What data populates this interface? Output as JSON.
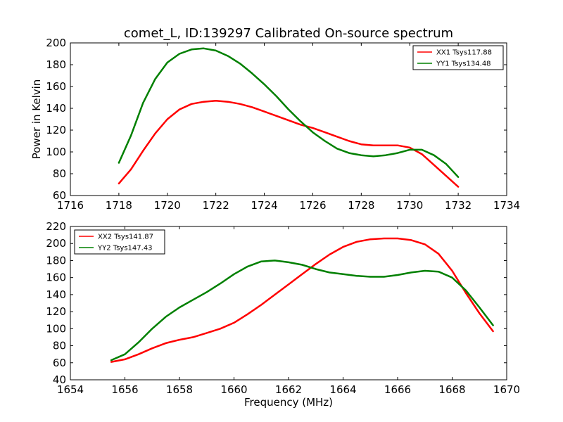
{
  "chart_data": [
    {
      "type": "line",
      "title": "comet_L, ID:139297 Calibrated On-source spectrum",
      "xlabel": "",
      "ylabel": "Power in Kelvin",
      "xlim": [
        1716,
        1734
      ],
      "ylim": [
        60,
        200
      ],
      "xticks": [
        1716,
        1718,
        1720,
        1722,
        1724,
        1726,
        1728,
        1730,
        1732,
        1734
      ],
      "yticks": [
        60,
        80,
        100,
        120,
        140,
        160,
        180,
        200
      ],
      "legend_position": "top-right",
      "grid": false,
      "series": [
        {
          "name": "XX1 Tsys117.88",
          "color": "#ff0000",
          "x": [
            1718,
            1718.5,
            1719,
            1719.5,
            1720,
            1720.5,
            1721,
            1721.5,
            1722,
            1722.5,
            1723,
            1723.5,
            1724,
            1724.5,
            1725,
            1725.5,
            1726,
            1726.5,
            1727,
            1727.5,
            1728,
            1728.5,
            1729,
            1729.5,
            1730,
            1730.5,
            1731,
            1731.5,
            1732
          ],
          "y": [
            71,
            84,
            101,
            117,
            130,
            139,
            144,
            146,
            147,
            146,
            144,
            141,
            137,
            133,
            129,
            125,
            122,
            118,
            114,
            110,
            107,
            106,
            106,
            106,
            104,
            98,
            88,
            78,
            68
          ]
        },
        {
          "name": "YY1 Tsys134.48",
          "color": "#008000",
          "x": [
            1718,
            1718.5,
            1719,
            1719.5,
            1720,
            1720.5,
            1721,
            1721.5,
            1722,
            1722.5,
            1723,
            1723.5,
            1724,
            1724.5,
            1725,
            1725.5,
            1726,
            1726.5,
            1727,
            1727.5,
            1728,
            1728.5,
            1729,
            1729.5,
            1730,
            1730.5,
            1731,
            1731.5,
            1732
          ],
          "y": [
            90,
            115,
            145,
            167,
            182,
            190,
            194,
            195,
            193,
            188,
            181,
            172,
            162,
            151,
            139,
            128,
            118,
            110,
            103,
            99,
            97,
            96,
            97,
            99,
            102,
            102,
            97,
            89,
            77
          ]
        }
      ]
    },
    {
      "type": "line",
      "title": "",
      "xlabel": "Frequency (MHz)",
      "ylabel": "",
      "xlim": [
        1654,
        1670
      ],
      "ylim": [
        40,
        220
      ],
      "xticks": [
        1654,
        1656,
        1658,
        1660,
        1662,
        1664,
        1666,
        1668,
        1670
      ],
      "yticks": [
        40,
        60,
        80,
        100,
        120,
        140,
        160,
        180,
        200,
        220
      ],
      "legend_position": "top-left",
      "grid": false,
      "series": [
        {
          "name": "XX2 Tsys141.87",
          "color": "#ff0000",
          "x": [
            1655.5,
            1656,
            1656.5,
            1657,
            1657.5,
            1658,
            1658.5,
            1659,
            1659.5,
            1660,
            1660.5,
            1661,
            1661.5,
            1662,
            1662.5,
            1663,
            1663.5,
            1664,
            1664.5,
            1665,
            1665.5,
            1666,
            1666.5,
            1667,
            1667.5,
            1668,
            1668.5,
            1669,
            1669.5
          ],
          "y": [
            61,
            64,
            70,
            77,
            83,
            87,
            90,
            95,
            100,
            107,
            117,
            128,
            140,
            152,
            164,
            176,
            187,
            196,
            202,
            205,
            206,
            206,
            204,
            199,
            188,
            168,
            142,
            118,
            97
          ]
        },
        {
          "name": "YY2 Tsys147.43",
          "color": "#008000",
          "x": [
            1655.5,
            1656,
            1656.5,
            1657,
            1657.5,
            1658,
            1658.5,
            1659,
            1659.5,
            1660,
            1660.5,
            1661,
            1661.5,
            1662,
            1662.5,
            1663,
            1663.5,
            1664,
            1664.5,
            1665,
            1665.5,
            1666,
            1666.5,
            1667,
            1667.5,
            1668,
            1668.5,
            1669,
            1669.5
          ],
          "y": [
            63,
            70,
            84,
            100,
            114,
            125,
            134,
            143,
            153,
            164,
            173,
            179,
            180,
            178,
            175,
            170,
            166,
            164,
            162,
            161,
            161,
            163,
            166,
            168,
            167,
            160,
            145,
            125,
            104
          ]
        }
      ]
    }
  ]
}
